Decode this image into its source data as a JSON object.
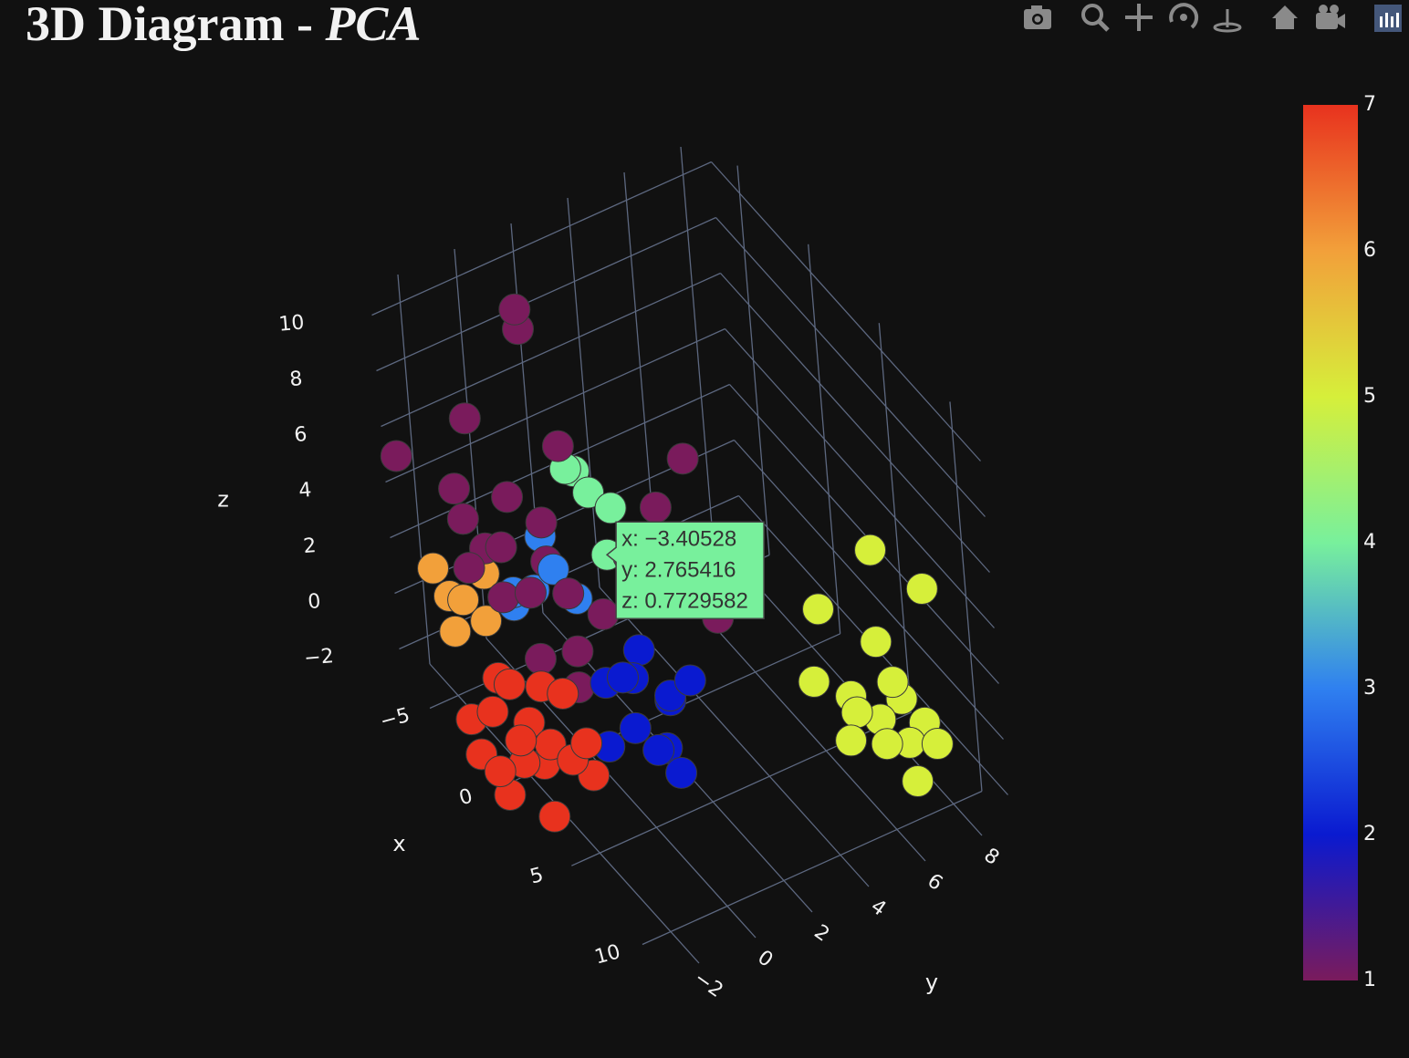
{
  "chart_data": {
    "type": "scatter3d",
    "title": "3D Diagram -",
    "title_italic": "PCA",
    "x_label": "x",
    "y_label": "y",
    "z_label": "z",
    "xlim": [
      -7,
      12
    ],
    "ylim": [
      -3,
      9
    ],
    "zlim": [
      -3,
      11
    ],
    "xticks": [
      {
        "value": -5,
        "label": "−5"
      },
      0,
      5,
      10
    ],
    "yticks": [
      {
        "value": -2,
        "label": "−2"
      },
      0,
      2,
      4,
      6,
      8
    ],
    "zticks": [
      {
        "value": -2,
        "label": "−2"
      },
      0,
      2,
      4,
      6,
      8,
      10
    ],
    "grid": true,
    "colorscale": [
      "#7a1b5c",
      "#0a1ad0",
      "#2f80f0",
      "#78f09c",
      "#d6ef3a",
      "#f2a03a",
      "#e8321e"
    ],
    "clim": [
      1,
      7
    ],
    "cticks": [
      1,
      2,
      3,
      4,
      5,
      6,
      7
    ],
    "x": [
      1,
      2,
      3,
      1.5,
      2.5,
      0.5,
      3.5,
      2,
      4,
      1,
      3,
      2.2,
      0,
      4.2,
      1.8,
      3.2,
      2.8,
      0.8,
      3,
      4,
      2.5,
      3.5,
      4.5,
      2,
      5,
      3,
      4,
      3.8,
      5.2,
      2.8,
      -4,
      -5,
      -3.5,
      -4.5,
      -3,
      -5.5,
      -3,
      -2.5,
      -3.5,
      -2,
      -4,
      -2.8,
      -5,
      -5.5,
      -4.5,
      -6,
      -3.40528,
      -3,
      -2,
      -4,
      -1,
      -5,
      -6,
      -5,
      -2.5,
      -6,
      -3.5,
      -1.5,
      0,
      -2,
      -4.5,
      1,
      -3,
      0,
      -2,
      -1,
      2,
      -3.8,
      -2.2,
      0.5,
      -0.5,
      6,
      5,
      7,
      6.5,
      5.5,
      7.5,
      4.5,
      6,
      8,
      5,
      3,
      7,
      4,
      5.5,
      6.5,
      8.5
    ],
    "y": [
      -3.5,
      -3,
      -2.5,
      -2,
      -3.8,
      -3,
      -2,
      -1.5,
      -3,
      -4,
      -3.5,
      -2.4,
      -3.8,
      -1.8,
      -3.2,
      -1.2,
      -4.2,
      -2.2,
      0.5,
      0,
      1,
      1.5,
      0.8,
      0,
      1,
      -0.5,
      2,
      -0.2,
      0.2,
      1.8,
      -2,
      -2.5,
      -1.5,
      -1,
      -2.8,
      -1.8,
      0,
      0.5,
      -0.5,
      1,
      0.8,
      -0.8,
      3,
      2.5,
      3.5,
      3,
      2.765416,
      -1,
      0,
      -2,
      -1,
      1,
      1.5,
      -1,
      1,
      -3,
      -2,
      0.5,
      0,
      -1.5,
      0,
      -0.5,
      0.5,
      2,
      5,
      3.5,
      4,
      -1.2,
      -2.5,
      -1.5,
      1.2,
      7.5,
      7,
      8,
      6.5,
      8.5,
      7,
      6,
      9,
      8.5,
      8,
      7,
      6,
      8.5,
      9.5,
      7.8,
      7.5
    ],
    "z": [
      0.5,
      -1,
      0,
      1,
      -1.5,
      1.2,
      -0.5,
      0.8,
      -1.8,
      -0.8,
      0.6,
      -1.2,
      -0.2,
      0.4,
      1.8,
      -1.6,
      -0.3,
      -0.6,
      1,
      0,
      1.5,
      0.2,
      -0.8,
      0.5,
      -1.5,
      -1,
      0.8,
      1.8,
      -0.2,
      -0.5,
      1,
      1.8,
      0.3,
      1.2,
      0.8,
      0.2,
      1,
      1.8,
      0.4,
      0.8,
      2,
      1.4,
      2,
      2.8,
      1.5,
      2.2,
      0.7729582,
      3,
      4,
      5,
      2.5,
      9.5,
      8,
      6.5,
      6,
      5.5,
      4.2,
      1.5,
      0.5,
      2,
      3.5,
      0,
      1.8,
      3,
      4,
      3.5,
      1,
      2.6,
      3.4,
      1.2,
      1,
      -2,
      -1.5,
      -2.5,
      -1,
      -2,
      -1.8,
      -0.8,
      -2.8,
      -2.2,
      0,
      0.5,
      -1.5,
      2.5,
      1.5,
      -0.5,
      -2.8
    ],
    "color_values": [
      7,
      7,
      7,
      7,
      7,
      7,
      7,
      7,
      7,
      7,
      7,
      7,
      7,
      7,
      7,
      7,
      7,
      7,
      2,
      2,
      2,
      2,
      2,
      2,
      2,
      2,
      2,
      2,
      2,
      2,
      6,
      6,
      6,
      6,
      6,
      6,
      3,
      3,
      3,
      3,
      3,
      3,
      4,
      4,
      4,
      4,
      4,
      1,
      1,
      1,
      1,
      1,
      1,
      1,
      1,
      1,
      1,
      1,
      1,
      1,
      1,
      1,
      1,
      1,
      1,
      1,
      1,
      1,
      1,
      1,
      1,
      5,
      5,
      5,
      5,
      5,
      5,
      5,
      5,
      5,
      5,
      5,
      5,
      5,
      5,
      5,
      5
    ],
    "hover": {
      "x": -3.40528,
      "y": 2.765416,
      "z": 0.7729582,
      "labels": [
        "x: −3.40528",
        "y: 2.765416",
        "z: 0.7729582"
      ]
    }
  }
}
